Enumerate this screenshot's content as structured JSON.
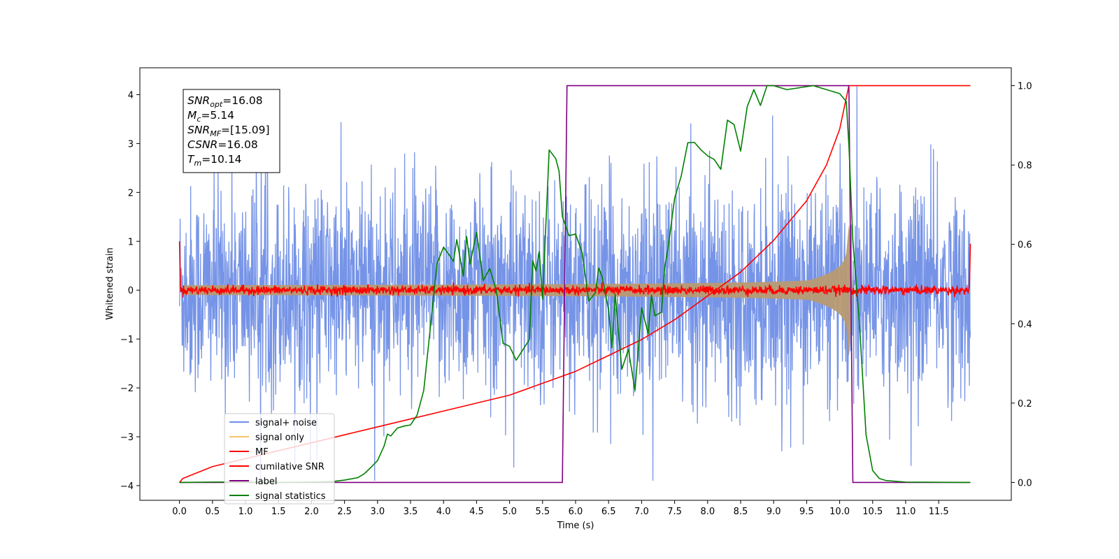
{
  "chart_data": {
    "type": "line",
    "title": "",
    "xlabel": "Time (s)",
    "ylabel": "Whitened strain",
    "y2label": "",
    "xlim": [
      -0.6,
      12.6
    ],
    "ylim": [
      -4.3,
      4.55
    ],
    "y2lim": [
      -0.045,
      1.045
    ],
    "x_ticks": [
      "0.0",
      "0.5",
      "1.0",
      "1.5",
      "2.0",
      "2.5",
      "3.0",
      "3.5",
      "4.0",
      "4.5",
      "5.0",
      "5.5",
      "6.0",
      "6.5",
      "7.0",
      "7.5",
      "8.0",
      "8.5",
      "9.0",
      "9.5",
      "10.0",
      "10.5",
      "11.0",
      "11.5"
    ],
    "y_ticks": [
      "4",
      "3",
      "2",
      "1",
      "0",
      "−1",
      "−2",
      "−3",
      "−4"
    ],
    "y2_ticks": [
      "1.0",
      "0.8",
      "0.6",
      "0.4",
      "0.2",
      "0.0"
    ],
    "legend_position": "lower-left",
    "annotation": [
      {
        "sym": "SNR",
        "sub": "opt",
        "value": "=16.08"
      },
      {
        "sym": "M",
        "sub": "c",
        "value": "=5.14"
      },
      {
        "sym": "SNR",
        "sub": "MF",
        "value": "=[15.09]"
      },
      {
        "sym": "CSNR",
        "sub": "",
        "value": "=16.08"
      },
      {
        "sym": "T",
        "sub": "m",
        "value": "=10.14"
      }
    ],
    "series": [
      {
        "name": "signal+ noise",
        "color": "#6f8ee6",
        "axis": "left",
        "description": "noise, amplitude ~ ±2.5 peaks to ±4.2, t in [0, 12]"
      },
      {
        "name": "signal only",
        "color": "#f5c36b",
        "axis": "left",
        "description": "chirp envelope rising to ~±1.5 at t=10.14"
      },
      {
        "name": "MF",
        "color": "#ff0000",
        "axis": "left",
        "description": "~0 with ±0.15 fluctuations, spikes to 1.0 at edges"
      },
      {
        "name": "cumilative SNR",
        "color": "#ff0000",
        "axis": "right",
        "x": [
          0.0,
          0.05,
          0.5,
          1.0,
          1.5,
          2.0,
          2.5,
          3.0,
          3.5,
          4.0,
          4.5,
          5.0,
          5.5,
          6.0,
          6.5,
          7.0,
          7.5,
          8.0,
          8.5,
          9.0,
          9.5,
          9.8,
          10.0,
          10.14,
          11.98
        ],
        "y": [
          0.0,
          0.01,
          0.04,
          0.06,
          0.08,
          0.1,
          0.12,
          0.14,
          0.16,
          0.18,
          0.2,
          0.22,
          0.25,
          0.28,
          0.32,
          0.36,
          0.41,
          0.47,
          0.53,
          0.61,
          0.71,
          0.8,
          0.89,
          1.0,
          1.0
        ]
      },
      {
        "name": "label",
        "color": "#800080",
        "axis": "right",
        "x": [
          0.0,
          5.8,
          5.87,
          10.14,
          10.2,
          11.98
        ],
        "y": [
          0.0,
          0.0,
          1.0,
          1.0,
          0.0,
          0.0
        ]
      },
      {
        "name": "signal statistics",
        "color": "#008000",
        "axis": "right",
        "x": [
          0.0,
          0.5,
          1.0,
          1.5,
          2.0,
          2.3,
          2.5,
          2.7,
          2.8,
          2.9,
          3.0,
          3.1,
          3.15,
          3.2,
          3.3,
          3.4,
          3.5,
          3.6,
          3.7,
          3.8,
          3.9,
          4.0,
          4.1,
          4.15,
          4.2,
          4.3,
          4.35,
          4.4,
          4.5,
          4.6,
          4.7,
          4.8,
          4.9,
          5.0,
          5.1,
          5.2,
          5.3,
          5.35,
          5.4,
          5.45,
          5.5,
          5.6,
          5.7,
          5.75,
          5.8,
          5.9,
          6.0,
          6.1,
          6.2,
          6.3,
          6.35,
          6.4,
          6.5,
          6.55,
          6.6,
          6.7,
          6.8,
          6.9,
          7.0,
          7.1,
          7.15,
          7.2,
          7.3,
          7.35,
          7.4,
          7.5,
          7.6,
          7.7,
          7.8,
          7.9,
          8.0,
          8.1,
          8.2,
          8.3,
          8.4,
          8.5,
          8.6,
          8.7,
          8.8,
          8.9,
          9.0,
          9.2,
          9.4,
          9.6,
          9.8,
          10.0,
          10.1,
          10.14,
          10.2,
          10.3,
          10.4,
          10.5,
          10.6,
          10.7,
          11.0,
          11.98
        ],
        "y": [
          0.0,
          0.001,
          0.001,
          0.0,
          0.001,
          0.002,
          0.006,
          0.012,
          0.022,
          0.038,
          0.055,
          0.092,
          0.122,
          0.117,
          0.137,
          0.142,
          0.145,
          0.17,
          0.232,
          0.39,
          0.551,
          0.593,
          0.57,
          0.557,
          0.612,
          0.52,
          0.62,
          0.55,
          0.63,
          0.509,
          0.539,
          0.483,
          0.351,
          0.343,
          0.308,
          0.334,
          0.36,
          0.559,
          0.533,
          0.582,
          0.462,
          0.838,
          0.816,
          0.784,
          0.67,
          0.622,
          0.626,
          0.579,
          0.457,
          0.478,
          0.54,
          0.52,
          0.435,
          0.339,
          0.475,
          0.285,
          0.335,
          0.232,
          0.44,
          0.375,
          0.472,
          0.42,
          0.429,
          0.542,
          0.59,
          0.716,
          0.772,
          0.856,
          0.857,
          0.838,
          0.823,
          0.814,
          0.789,
          0.913,
          0.902,
          0.835,
          0.947,
          0.99,
          0.95,
          1.0,
          1.0,
          0.99,
          0.995,
          1.0,
          0.99,
          0.98,
          0.96,
          0.85,
          0.61,
          0.4,
          0.12,
          0.03,
          0.01,
          0.005,
          0.001,
          0.0
        ]
      }
    ]
  }
}
